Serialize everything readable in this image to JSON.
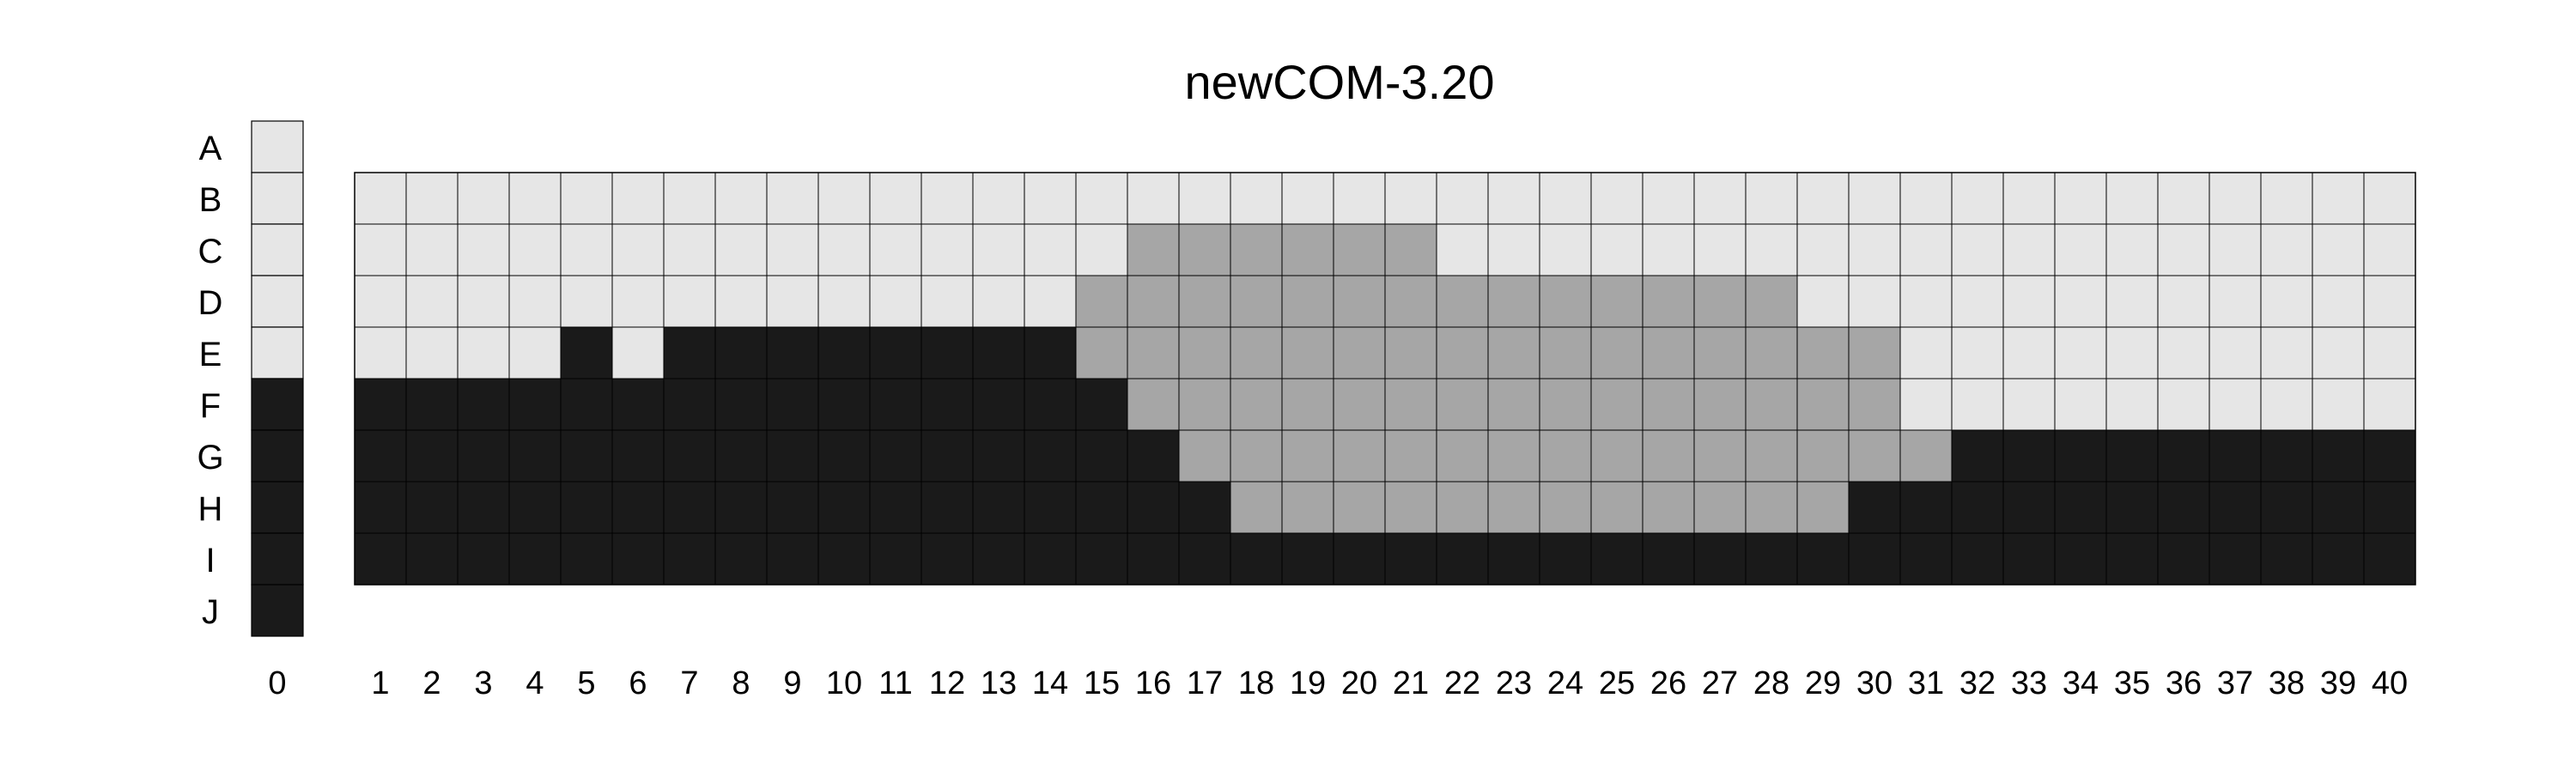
{
  "chart_data": {
    "type": "heatmap",
    "title": "newCOM-3.20",
    "xlabel": "",
    "ylabel": "",
    "rows": [
      "A",
      "B",
      "C",
      "D",
      "E",
      "F",
      "G",
      "H",
      "I",
      "J"
    ],
    "reference_column": {
      "label": "0",
      "values": [
        0,
        0,
        0,
        0,
        0,
        2,
        2,
        2,
        2,
        2
      ]
    },
    "columns": [
      "1",
      "2",
      "3",
      "4",
      "5",
      "6",
      "7",
      "8",
      "9",
      "10",
      "11",
      "12",
      "13",
      "14",
      "15",
      "16",
      "17",
      "18",
      "19",
      "20",
      "21",
      "22",
      "23",
      "24",
      "25",
      "26",
      "27",
      "28",
      "29",
      "30",
      "31",
      "32",
      "33",
      "34",
      "35",
      "36",
      "37",
      "38",
      "39",
      "40"
    ],
    "grid_rows": [
      "B",
      "C",
      "D",
      "E",
      "F",
      "G",
      "H",
      "I"
    ],
    "grid": [
      [
        0,
        0,
        0,
        0,
        0,
        0,
        0,
        0,
        0,
        0,
        0,
        0,
        0,
        0,
        0,
        0,
        0,
        0,
        0,
        0,
        0,
        0,
        0,
        0,
        0,
        0,
        0,
        0,
        0,
        0,
        0,
        0,
        0,
        0,
        0,
        0,
        0,
        0,
        0,
        0
      ],
      [
        0,
        0,
        0,
        0,
        0,
        0,
        0,
        0,
        0,
        0,
        0,
        0,
        0,
        0,
        0,
        1,
        1,
        1,
        1,
        1,
        1,
        0,
        0,
        0,
        0,
        0,
        0,
        0,
        0,
        0,
        0,
        0,
        0,
        0,
        0,
        0,
        0,
        0,
        0,
        0
      ],
      [
        0,
        0,
        0,
        0,
        0,
        0,
        0,
        0,
        0,
        0,
        0,
        0,
        0,
        0,
        1,
        1,
        1,
        1,
        1,
        1,
        1,
        1,
        1,
        1,
        1,
        1,
        1,
        1,
        0,
        0,
        0,
        0,
        0,
        0,
        0,
        0,
        0,
        0,
        0,
        0
      ],
      [
        0,
        0,
        0,
        0,
        2,
        0,
        2,
        2,
        2,
        2,
        2,
        2,
        2,
        2,
        1,
        1,
        1,
        1,
        1,
        1,
        1,
        1,
        1,
        1,
        1,
        1,
        1,
        1,
        1,
        1,
        0,
        0,
        0,
        0,
        0,
        0,
        0,
        0,
        0,
        0
      ],
      [
        2,
        2,
        2,
        2,
        2,
        2,
        2,
        2,
        2,
        2,
        2,
        2,
        2,
        2,
        2,
        1,
        1,
        1,
        1,
        1,
        1,
        1,
        1,
        1,
        1,
        1,
        1,
        1,
        1,
        1,
        0,
        0,
        0,
        0,
        0,
        0,
        0,
        0,
        0,
        0
      ],
      [
        2,
        2,
        2,
        2,
        2,
        2,
        2,
        2,
        2,
        2,
        2,
        2,
        2,
        2,
        2,
        2,
        1,
        1,
        1,
        1,
        1,
        1,
        1,
        1,
        1,
        1,
        1,
        1,
        1,
        1,
        1,
        2,
        2,
        2,
        2,
        2,
        2,
        2,
        2,
        2
      ],
      [
        2,
        2,
        2,
        2,
        2,
        2,
        2,
        2,
        2,
        2,
        2,
        2,
        2,
        2,
        2,
        2,
        2,
        1,
        1,
        1,
        1,
        1,
        1,
        1,
        1,
        1,
        1,
        1,
        1,
        2,
        2,
        2,
        2,
        2,
        2,
        2,
        2,
        2,
        2,
        2
      ],
      [
        2,
        2,
        2,
        2,
        2,
        2,
        2,
        2,
        2,
        2,
        2,
        2,
        2,
        2,
        2,
        2,
        2,
        2,
        2,
        2,
        2,
        2,
        2,
        2,
        2,
        2,
        2,
        2,
        2,
        2,
        2,
        2,
        2,
        2,
        2,
        2,
        2,
        2,
        2,
        2
      ]
    ],
    "levels": {
      "0": "#e6e6e6",
      "1": "#a6a6a6",
      "2": "#1a1a1a"
    },
    "legend": "none",
    "grid_lines": true
  }
}
